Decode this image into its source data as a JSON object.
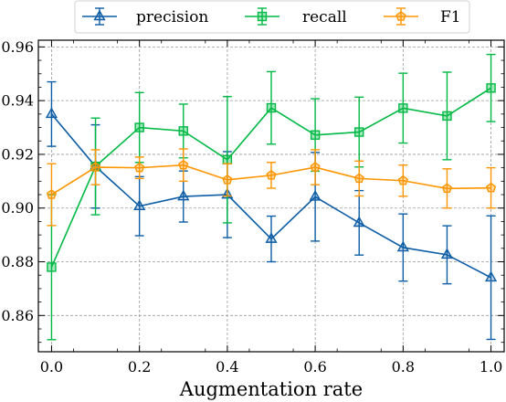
{
  "chart_data": {
    "type": "line",
    "xlabel": "Augmentation rate",
    "ylabel": "",
    "title": "",
    "xlim": [
      -0.03,
      1.03
    ],
    "ylim": [
      0.8465,
      0.9625
    ],
    "xticks": [
      0.0,
      0.2,
      0.4,
      0.6,
      0.8,
      1.0
    ],
    "xtick_labels": [
      "0.0",
      "0.2",
      "0.4",
      "0.6",
      "0.8",
      "1.0"
    ],
    "yticks": [
      0.86,
      0.88,
      0.9,
      0.92,
      0.94,
      0.96
    ],
    "ytick_labels": [
      "0.86",
      "0.88",
      "0.90",
      "0.92",
      "0.94",
      "0.96"
    ],
    "grid": true,
    "legend_position": "top-center",
    "x": [
      0.0,
      0.1,
      0.2,
      0.3,
      0.4,
      0.5,
      0.6,
      0.7,
      0.8,
      0.9,
      1.0
    ],
    "series": [
      {
        "name": "precision",
        "color": "#0C5DA5",
        "marker": "triangle",
        "values": [
          0.935,
          0.9155,
          0.9007,
          0.9043,
          0.905,
          0.8885,
          0.9042,
          0.8945,
          0.8853,
          0.8826,
          0.8741
        ],
        "errors": [
          0.012,
          0.0155,
          0.011,
          0.0095,
          0.016,
          0.0085,
          0.0165,
          0.012,
          0.0125,
          0.0108,
          0.023
        ]
      },
      {
        "name": "recall",
        "color": "#00B945",
        "marker": "square",
        "values": [
          0.878,
          0.9155,
          0.93,
          0.9287,
          0.918,
          0.9373,
          0.9272,
          0.9283,
          0.9372,
          0.9343,
          0.9447
        ],
        "errors": [
          0.027,
          0.018,
          0.013,
          0.01,
          0.0235,
          0.0135,
          0.0135,
          0.013,
          0.013,
          0.0163,
          0.0125
        ]
      },
      {
        "name": "F1",
        "color": "#FF9500",
        "marker": "pentagon",
        "values": [
          0.905,
          0.9152,
          0.915,
          0.916,
          0.9105,
          0.9122,
          0.9152,
          0.911,
          0.9102,
          0.9073,
          0.9075
        ],
        "errors": [
          0.0115,
          0.0065,
          0.004,
          0.006,
          0.006,
          0.0048,
          0.0065,
          0.0065,
          0.0058,
          0.0073,
          0.0075
        ]
      }
    ]
  }
}
